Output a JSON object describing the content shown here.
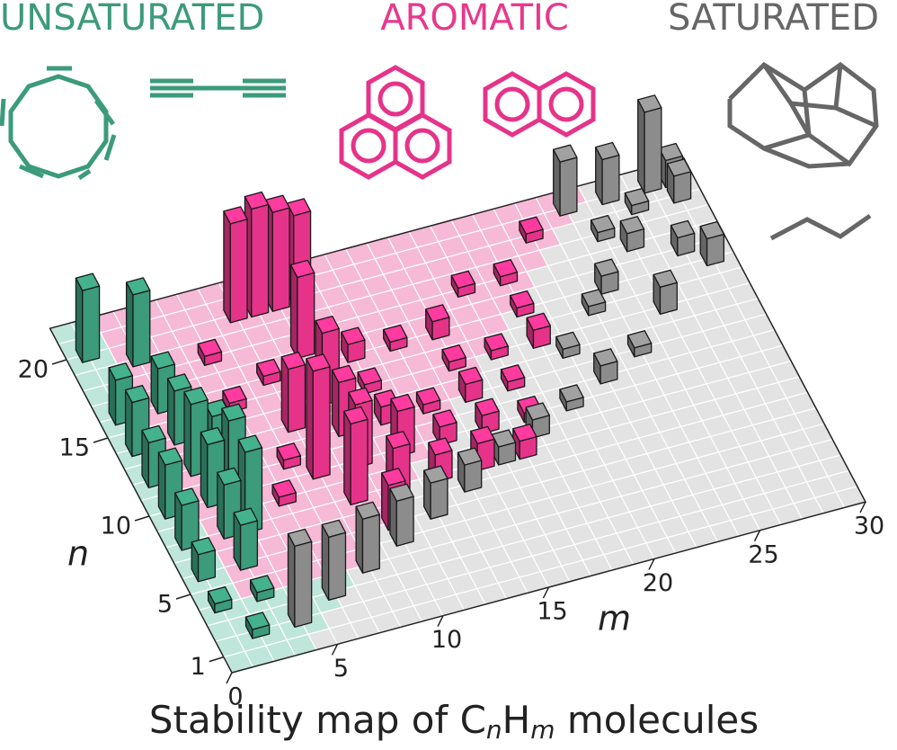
{
  "chart_data": {
    "type": "bar3d",
    "title": [
      "Stability map of C",
      "n",
      "H",
      "m",
      " molecules"
    ],
    "xlabel": "m",
    "ylabel": "n",
    "xlim": [
      0,
      30
    ],
    "ylim": [
      0,
      22
    ],
    "xticks": [
      0,
      5,
      10,
      15,
      20,
      25,
      30
    ],
    "yticks": [
      1,
      5,
      10,
      15,
      20
    ],
    "series": [
      {
        "name": "UNSATURATED",
        "color": "#3b9b7b",
        "m": [
          1,
          3,
          1,
          3,
          1,
          3,
          1,
          3,
          4,
          1,
          3,
          4,
          1,
          3,
          4,
          1,
          3,
          1,
          3,
          2
        ],
        "n": [
          20,
          19,
          16,
          16,
          14,
          14,
          12,
          12,
          12,
          10,
          10,
          10,
          8,
          8,
          8,
          6,
          6,
          4,
          4,
          2
        ],
        "values": [
          8,
          8,
          5,
          5,
          6,
          6,
          5,
          8,
          6,
          6,
          7,
          9,
          5,
          6,
          9,
          3,
          5,
          1,
          1,
          1
        ]
      },
      {
        "name": "AROMATIC",
        "color": "#e6338a",
        "m": [
          8,
          9,
          10,
          11,
          6,
          10,
          8,
          12,
          6,
          10,
          12,
          8,
          10,
          12,
          7,
          8,
          10,
          12,
          6,
          9,
          11,
          13,
          14,
          16,
          14,
          16,
          18,
          18,
          14,
          16,
          18,
          20,
          22,
          20,
          16,
          20,
          15,
          17,
          18,
          12,
          10
        ],
        "n": [
          20,
          20,
          20,
          20,
          18,
          17,
          16,
          16,
          15,
          14,
          14,
          13,
          12,
          12,
          11,
          10,
          10,
          10,
          9,
          8,
          8,
          8,
          10,
          10,
          12,
          12,
          14,
          12,
          16,
          16,
          18,
          18,
          20,
          16,
          14,
          14,
          8,
          8,
          10,
          6,
          6
        ],
        "values": [
          11,
          12,
          11,
          10,
          1,
          9,
          1,
          2,
          1,
          8,
          1,
          7,
          6,
          2,
          1,
          12,
          7,
          5,
          1,
          9,
          5,
          3,
          2,
          2,
          1,
          2,
          1,
          1,
          1,
          2,
          1,
          1,
          1,
          1,
          1,
          2,
          3,
          2,
          1,
          4,
          5
        ]
      },
      {
        "name": "SATURATED",
        "color": "#8c8c8c",
        "m": [
          4,
          6,
          8,
          10,
          12,
          14,
          16,
          18,
          20,
          22,
          24,
          21,
          23,
          26,
          24,
          26,
          28,
          25,
          27,
          29,
          24,
          26,
          28,
          29,
          29
        ],
        "n": [
          2,
          3,
          4,
          5,
          6,
          7,
          8,
          9,
          10,
          11,
          12,
          13,
          15,
          14,
          16,
          18,
          17,
          19,
          20,
          20,
          21,
          21,
          21,
          21,
          16
        ],
        "values": [
          9,
          7,
          6,
          5,
          4,
          3,
          2,
          2,
          1,
          2,
          1,
          1,
          1,
          3,
          2,
          2,
          2,
          1,
          1,
          3,
          6,
          5,
          9,
          3,
          3
        ]
      }
    ]
  }
}
